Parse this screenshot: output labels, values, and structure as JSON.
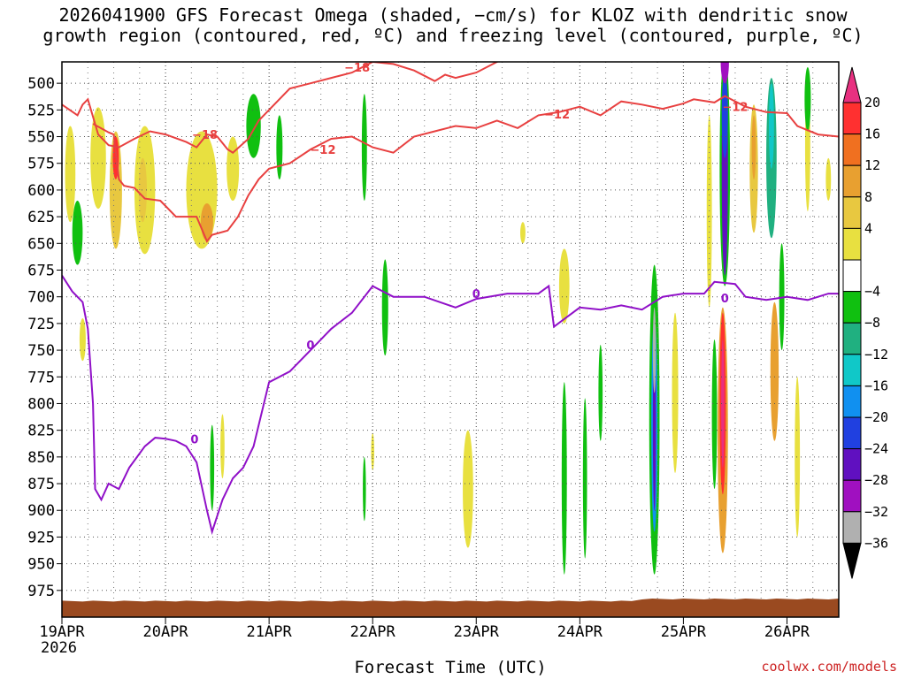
{
  "chart_data": {
    "type": "heatmap",
    "title_line1": "2026041900 GFS Forecast Omega (shaded, −cm/s) for KLOZ with dendritic snow",
    "title_line2": "growth region (contoured, red, ºC) and freezing level (contoured, purple, ºC)",
    "xlabel": "Forecast Time (UTC)",
    "credit": "coolwx.com/models",
    "x_ticks": [
      "19APR",
      "20APR",
      "21APR",
      "22APR",
      "23APR",
      "24APR",
      "25APR",
      "26APR"
    ],
    "x_year": "2026",
    "x_range_days": [
      0,
      7.5
    ],
    "y_ticks": [
      500,
      525,
      550,
      575,
      600,
      625,
      650,
      675,
      700,
      725,
      750,
      775,
      800,
      825,
      850,
      875,
      900,
      925,
      950,
      975
    ],
    "y_range_hPa": [
      480,
      1000
    ],
    "ground_pressure_hPa": 985,
    "colorbar": {
      "labels": [
        "20",
        "16",
        "12",
        "8",
        "4",
        "−4",
        "−8",
        "−12",
        "−16",
        "−20",
        "−24",
        "−28",
        "−32",
        "−36"
      ],
      "colors": [
        "#ff3030",
        "#f07020",
        "#e8a030",
        "#e8c840",
        "#e8e040",
        "#ffffff",
        "#10c010",
        "#20b080",
        "#10c8c8",
        "#1090f0",
        "#2040e0",
        "#6010c0",
        "#a010c0",
        "#b0b0b0"
      ],
      "top_color": "#e83080",
      "bottom_color": "#000000"
    },
    "freezing_level_label": "0",
    "freezing_level_hPa": [
      [
        0.0,
        680
      ],
      [
        0.1,
        695
      ],
      [
        0.2,
        705
      ],
      [
        0.25,
        730
      ],
      [
        0.3,
        800
      ],
      [
        0.32,
        880
      ],
      [
        0.38,
        890
      ],
      [
        0.45,
        875
      ],
      [
        0.55,
        880
      ],
      [
        0.65,
        860
      ],
      [
        0.8,
        840
      ],
      [
        0.9,
        832
      ],
      [
        1.0,
        833
      ],
      [
        1.1,
        835
      ],
      [
        1.2,
        840
      ],
      [
        1.3,
        855
      ],
      [
        1.4,
        900
      ],
      [
        1.45,
        920
      ],
      [
        1.55,
        890
      ],
      [
        1.65,
        870
      ],
      [
        1.75,
        860
      ],
      [
        1.85,
        840
      ],
      [
        2.0,
        780
      ],
      [
        2.2,
        770
      ],
      [
        2.4,
        750
      ],
      [
        2.6,
        730
      ],
      [
        2.8,
        715
      ],
      [
        3.0,
        690
      ],
      [
        3.2,
        700
      ],
      [
        3.5,
        700
      ],
      [
        3.8,
        710
      ],
      [
        4.0,
        702
      ],
      [
        4.3,
        697
      ],
      [
        4.6,
        697
      ],
      [
        4.7,
        690
      ],
      [
        4.75,
        728
      ],
      [
        5.0,
        710
      ],
      [
        5.2,
        712
      ],
      [
        5.4,
        708
      ],
      [
        5.6,
        712
      ],
      [
        5.8,
        700
      ],
      [
        6.0,
        697
      ],
      [
        6.2,
        697
      ],
      [
        6.3,
        686
      ],
      [
        6.5,
        688
      ],
      [
        6.6,
        700
      ],
      [
        6.8,
        703
      ],
      [
        7.0,
        700
      ],
      [
        7.2,
        703
      ],
      [
        7.4,
        697
      ],
      [
        7.5,
        697
      ]
    ],
    "dgz_contours": [
      {
        "label": "−18",
        "points": [
          [
            0.0,
            520
          ],
          [
            0.15,
            530
          ],
          [
            0.2,
            520
          ],
          [
            0.25,
            515
          ],
          [
            0.35,
            548
          ],
          [
            0.45,
            558
          ],
          [
            0.55,
            560
          ],
          [
            0.7,
            552
          ],
          [
            0.85,
            545
          ],
          [
            1.0,
            548
          ],
          [
            1.2,
            555
          ],
          [
            1.3,
            560
          ],
          [
            1.4,
            548
          ],
          [
            1.5,
            550
          ],
          [
            1.6,
            562
          ],
          [
            1.65,
            565
          ],
          [
            1.8,
            552
          ],
          [
            1.9,
            535
          ],
          [
            2.0,
            525
          ],
          [
            2.2,
            505
          ],
          [
            2.4,
            500
          ],
          [
            2.6,
            495
          ],
          [
            2.8,
            490
          ],
          [
            3.0,
            480
          ],
          [
            3.2,
            482
          ],
          [
            3.4,
            488
          ],
          [
            3.6,
            498
          ],
          [
            3.7,
            492
          ],
          [
            3.8,
            495
          ],
          [
            4.0,
            490
          ],
          [
            4.2,
            480
          ],
          [
            4.4,
            472
          ]
        ]
      },
      {
        "label": "−12",
        "points": [
          [
            0.3,
            538
          ],
          [
            0.45,
            546
          ],
          [
            0.5,
            548
          ],
          [
            0.55,
            590
          ],
          [
            0.6,
            596
          ],
          [
            0.7,
            598
          ],
          [
            0.8,
            608
          ],
          [
            0.95,
            610
          ],
          [
            1.0,
            615
          ],
          [
            1.1,
            625
          ],
          [
            1.15,
            625
          ],
          [
            1.3,
            625
          ],
          [
            1.4,
            648
          ],
          [
            1.45,
            642
          ],
          [
            1.6,
            638
          ],
          [
            1.7,
            625
          ],
          [
            1.8,
            605
          ],
          [
            1.9,
            590
          ],
          [
            2.0,
            580
          ],
          [
            2.2,
            575
          ],
          [
            2.4,
            562
          ],
          [
            2.6,
            552
          ],
          [
            2.8,
            550
          ],
          [
            3.0,
            560
          ],
          [
            3.2,
            565
          ],
          [
            3.4,
            550
          ],
          [
            3.6,
            545
          ],
          [
            3.8,
            540
          ],
          [
            4.0,
            542
          ],
          [
            4.2,
            535
          ],
          [
            4.4,
            542
          ],
          [
            4.6,
            530
          ],
          [
            4.8,
            527
          ],
          [
            5.0,
            522
          ],
          [
            5.2,
            530
          ],
          [
            5.4,
            517
          ],
          [
            5.6,
            520
          ],
          [
            5.8,
            524
          ],
          [
            6.0,
            519
          ],
          [
            6.1,
            515
          ],
          [
            6.3,
            518
          ],
          [
            6.4,
            512
          ],
          [
            6.6,
            522
          ],
          [
            6.8,
            527
          ],
          [
            7.0,
            528
          ],
          [
            7.1,
            540
          ],
          [
            7.3,
            548
          ],
          [
            7.5,
            550
          ]
        ]
      }
    ],
    "omega_cells": [
      {
        "day": 0.08,
        "hpa": 585,
        "w": 0.1,
        "h": 90,
        "c": "#e8e040"
      },
      {
        "day": 0.35,
        "hpa": 570,
        "w": 0.15,
        "h": 95,
        "c": "#e8e040"
      },
      {
        "day": 0.52,
        "hpa": 600,
        "w": 0.12,
        "h": 110,
        "c": "#e8c840"
      },
      {
        "day": 0.52,
        "hpa": 570,
        "w": 0.06,
        "h": 40,
        "c": "#ff3030"
      },
      {
        "day": 0.8,
        "hpa": 600,
        "w": 0.2,
        "h": 120,
        "c": "#e8e040"
      },
      {
        "day": 0.78,
        "hpa": 600,
        "w": 0.08,
        "h": 60,
        "c": "#e8c840"
      },
      {
        "day": 0.15,
        "hpa": 640,
        "w": 0.1,
        "h": 60,
        "c": "#10c010"
      },
      {
        "day": 0.2,
        "hpa": 740,
        "w": 0.06,
        "h": 40,
        "c": "#e8e040"
      },
      {
        "day": 1.35,
        "hpa": 600,
        "w": 0.3,
        "h": 110,
        "c": "#e8e040"
      },
      {
        "day": 1.4,
        "hpa": 630,
        "w": 0.12,
        "h": 35,
        "c": "#e8a030"
      },
      {
        "day": 1.65,
        "hpa": 580,
        "w": 0.12,
        "h": 60,
        "c": "#e8e040"
      },
      {
        "day": 1.85,
        "hpa": 540,
        "w": 0.14,
        "h": 60,
        "c": "#10c010"
      },
      {
        "day": 1.45,
        "hpa": 860,
        "w": 0.04,
        "h": 80,
        "c": "#10c010"
      },
      {
        "day": 1.55,
        "hpa": 840,
        "w": 0.04,
        "h": 60,
        "c": "#e8e040"
      },
      {
        "day": 2.1,
        "hpa": 560,
        "w": 0.06,
        "h": 60,
        "c": "#10c010"
      },
      {
        "day": 2.92,
        "hpa": 560,
        "w": 0.05,
        "h": 100,
        "c": "#10c010"
      },
      {
        "day": 3.12,
        "hpa": 710,
        "w": 0.06,
        "h": 90,
        "c": "#10c010"
      },
      {
        "day": 2.92,
        "hpa": 880,
        "w": 0.03,
        "h": 60,
        "c": "#10c010"
      },
      {
        "day": 3.0,
        "hpa": 845,
        "w": 0.03,
        "h": 35,
        "c": "#e8e040"
      },
      {
        "day": 3.92,
        "hpa": 880,
        "w": 0.1,
        "h": 110,
        "c": "#e8e040"
      },
      {
        "day": 4.45,
        "hpa": 640,
        "w": 0.05,
        "h": 20,
        "c": "#e8e040"
      },
      {
        "day": 4.85,
        "hpa": 690,
        "w": 0.1,
        "h": 70,
        "c": "#e8e040"
      },
      {
        "day": 4.85,
        "hpa": 870,
        "w": 0.05,
        "h": 180,
        "c": "#10c010"
      },
      {
        "day": 5.05,
        "hpa": 870,
        "w": 0.04,
        "h": 150,
        "c": "#10c010"
      },
      {
        "day": 5.2,
        "hpa": 790,
        "w": 0.04,
        "h": 90,
        "c": "#10c010"
      },
      {
        "day": 5.72,
        "hpa": 815,
        "w": 0.1,
        "h": 290,
        "c": "#10c010"
      },
      {
        "day": 5.72,
        "hpa": 820,
        "w": 0.06,
        "h": 200,
        "c": "#1090f0"
      },
      {
        "day": 5.72,
        "hpa": 820,
        "w": 0.03,
        "h": 160,
        "c": "#6010c0"
      },
      {
        "day": 5.72,
        "hpa": 750,
        "w": 0.03,
        "h": 80,
        "c": "#b0b0b0"
      },
      {
        "day": 5.92,
        "hpa": 790,
        "w": 0.06,
        "h": 150,
        "c": "#e8e040"
      },
      {
        "day": 6.25,
        "hpa": 620,
        "w": 0.05,
        "h": 180,
        "c": "#e8e040"
      },
      {
        "day": 6.3,
        "hpa": 810,
        "w": 0.05,
        "h": 140,
        "c": "#10c010"
      },
      {
        "day": 6.4,
        "hpa": 580,
        "w": 0.1,
        "h": 220,
        "c": "#10c010"
      },
      {
        "day": 6.4,
        "hpa": 580,
        "w": 0.06,
        "h": 200,
        "c": "#6010c0"
      },
      {
        "day": 6.4,
        "hpa": 530,
        "w": 0.06,
        "h": 80,
        "c": "#2040e0"
      },
      {
        "day": 6.4,
        "hpa": 480,
        "w": 0.08,
        "h": 40,
        "c": "#a010c0"
      },
      {
        "day": 6.38,
        "hpa": 825,
        "w": 0.1,
        "h": 230,
        "c": "#e8a030"
      },
      {
        "day": 6.38,
        "hpa": 800,
        "w": 0.06,
        "h": 170,
        "c": "#ff3030"
      },
      {
        "day": 6.38,
        "hpa": 800,
        "w": 0.03,
        "h": 120,
        "c": "#e83080"
      },
      {
        "day": 6.68,
        "hpa": 580,
        "w": 0.08,
        "h": 120,
        "c": "#e8c840"
      },
      {
        "day": 6.68,
        "hpa": 560,
        "w": 0.04,
        "h": 60,
        "c": "#e8a030"
      },
      {
        "day": 6.85,
        "hpa": 570,
        "w": 0.1,
        "h": 150,
        "c": "#20b080"
      },
      {
        "day": 6.85,
        "hpa": 540,
        "w": 0.05,
        "h": 80,
        "c": "#10c8c8"
      },
      {
        "day": 6.88,
        "hpa": 770,
        "w": 0.08,
        "h": 130,
        "c": "#e8a030"
      },
      {
        "day": 6.95,
        "hpa": 700,
        "w": 0.05,
        "h": 100,
        "c": "#10c010"
      },
      {
        "day": 7.1,
        "hpa": 850,
        "w": 0.05,
        "h": 150,
        "c": "#e8e040"
      },
      {
        "day": 7.2,
        "hpa": 560,
        "w": 0.05,
        "h": 120,
        "c": "#e8e040"
      },
      {
        "day": 7.2,
        "hpa": 515,
        "w": 0.06,
        "h": 60,
        "c": "#10c010"
      },
      {
        "day": 7.4,
        "hpa": 590,
        "w": 0.05,
        "h": 40,
        "c": "#e8e040"
      }
    ]
  }
}
